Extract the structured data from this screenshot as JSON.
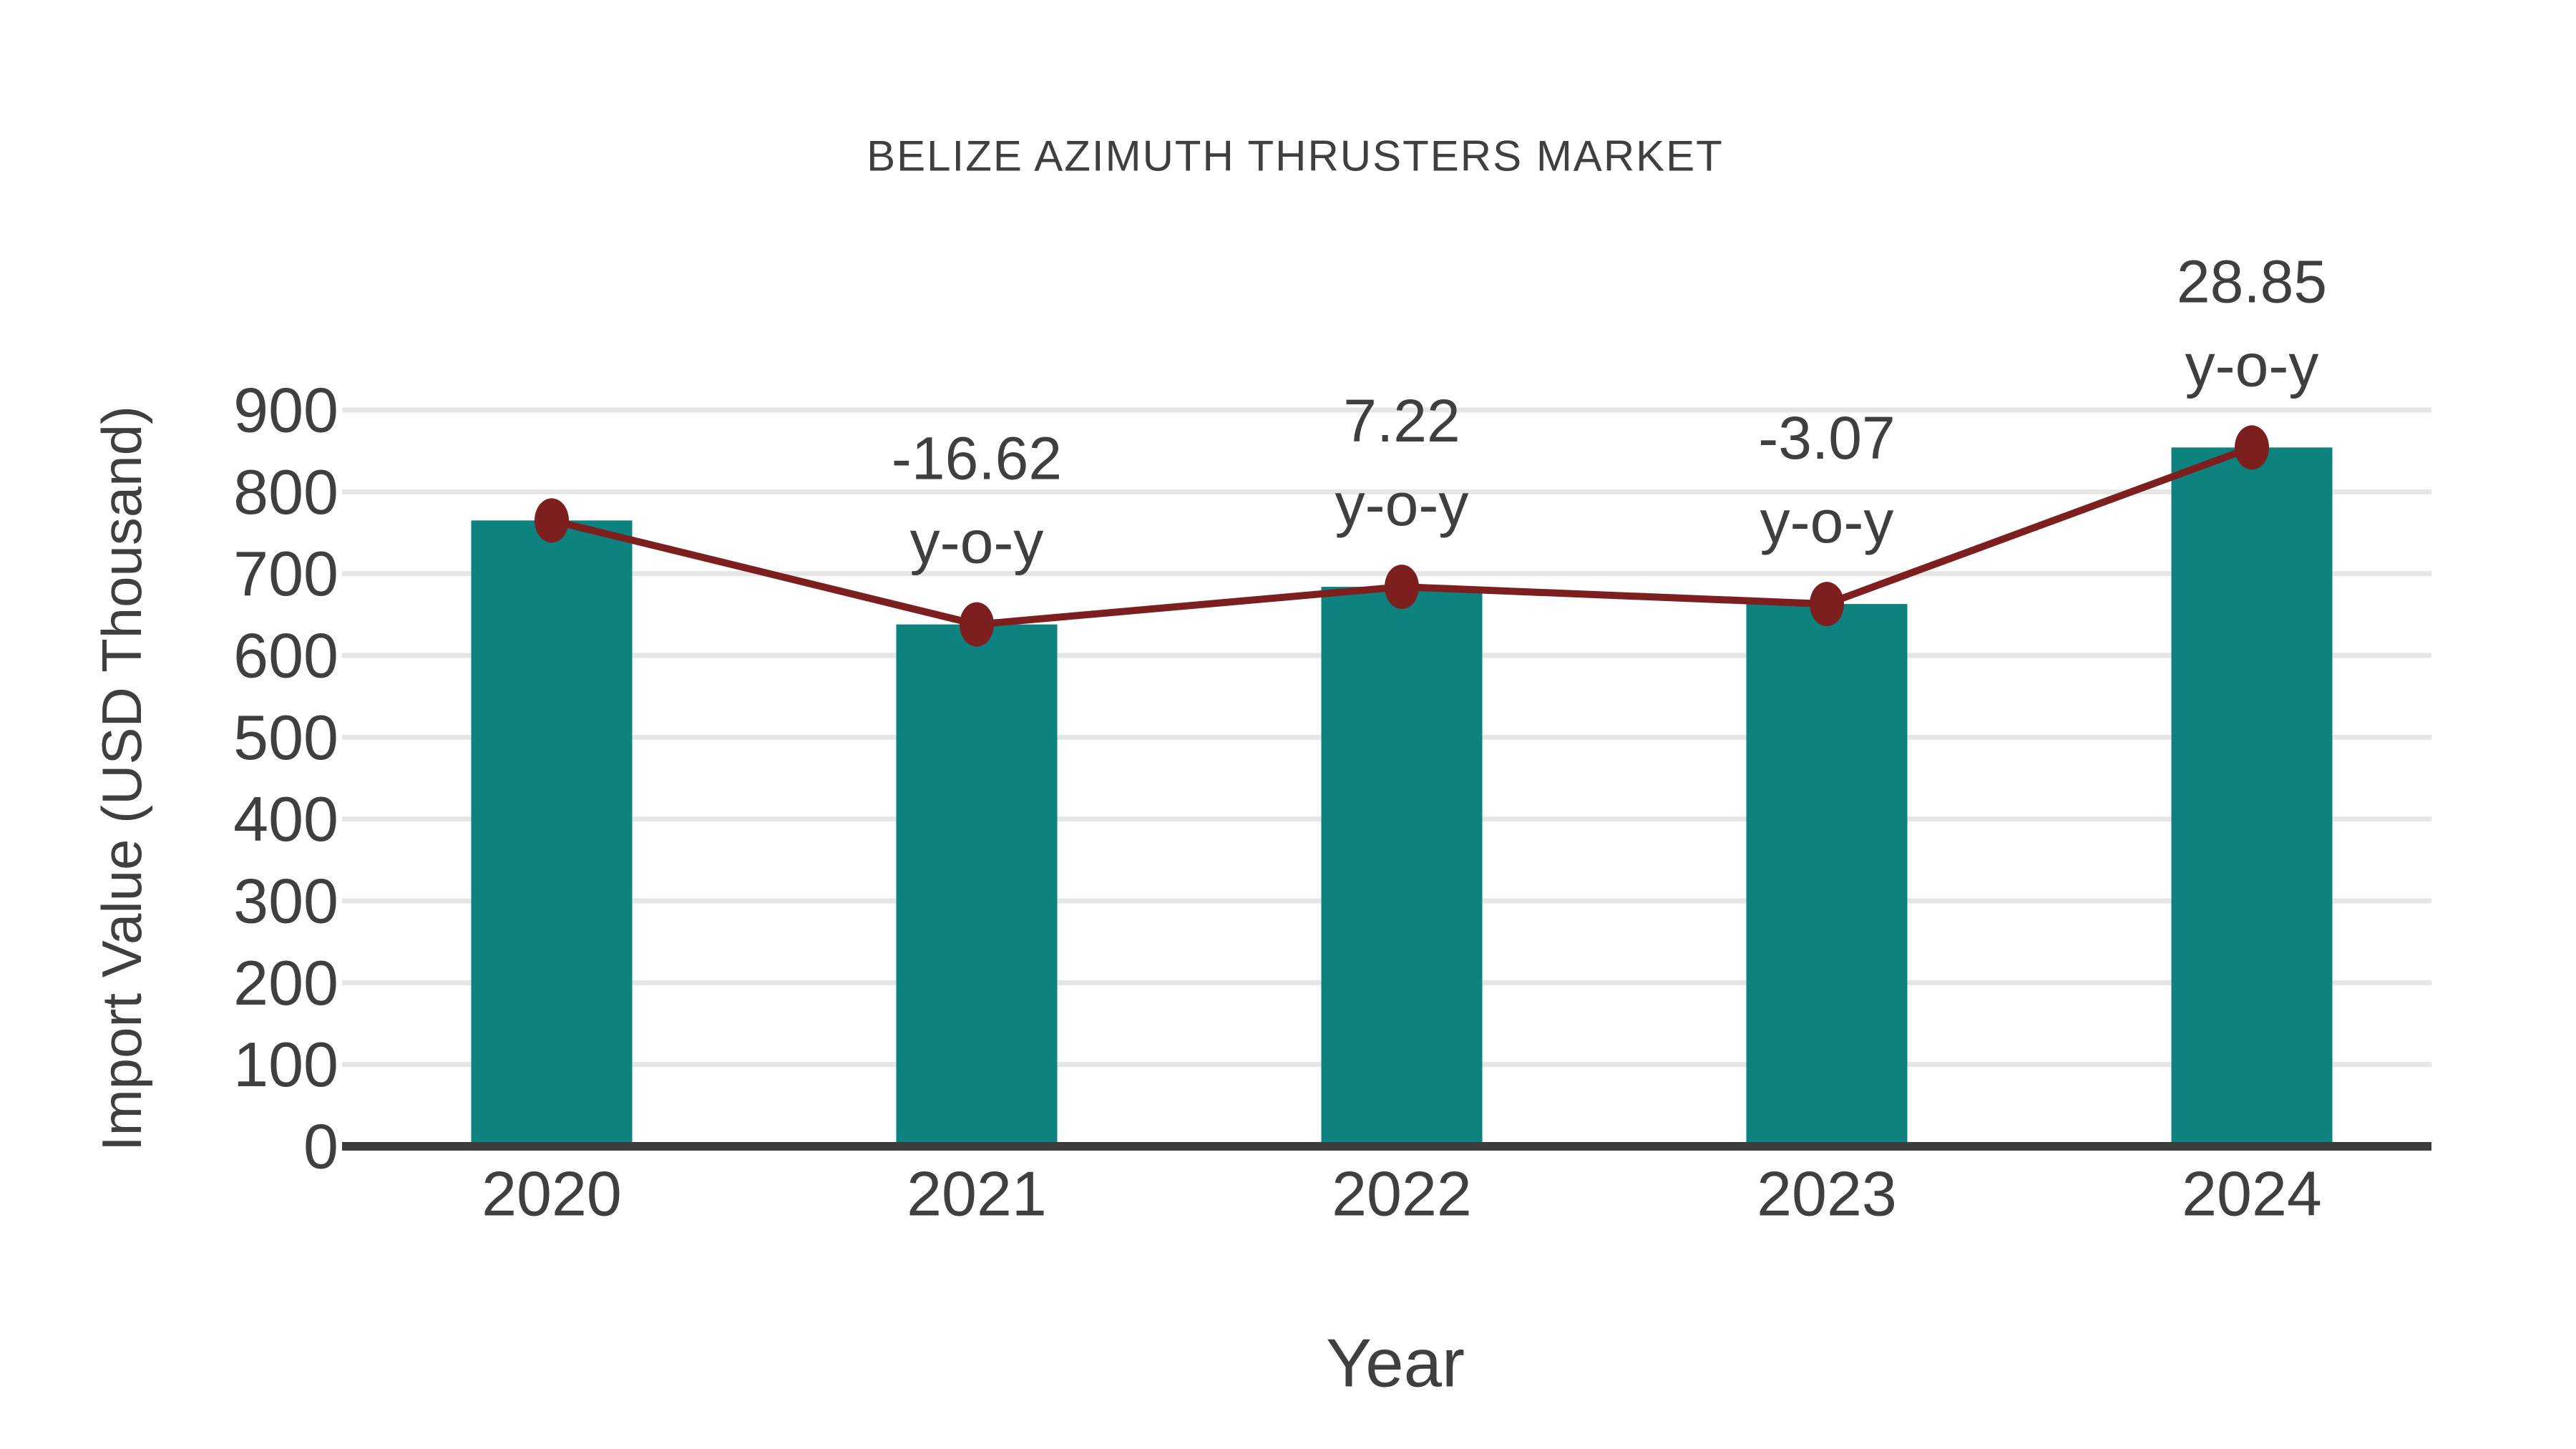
{
  "page": {
    "background": "#ffffff"
  },
  "chart_data": {
    "type": "bar",
    "title": "BELIZE AZIMUTH THRUSTERS MARKET",
    "xlabel": "Year",
    "ylabel": "Import Value (USD Thousand)",
    "categories": [
      "2020",
      "2021",
      "2022",
      "2023",
      "2024"
    ],
    "series": [
      {
        "name": "Import Value (USD Thousand)",
        "type": "bar",
        "values": [
          765,
          637.9,
          683.9,
          662.9,
          854.2
        ]
      },
      {
        "name": "y-o-y growth (%)",
        "type": "line",
        "values": [
          null,
          -16.62,
          7.22,
          -3.07,
          28.85
        ]
      }
    ],
    "annotations": [
      {
        "category": "2021",
        "value_label": "-16.62",
        "unit_label": "y-o-y"
      },
      {
        "category": "2022",
        "value_label": "7.22",
        "unit_label": "y-o-y"
      },
      {
        "category": "2023",
        "value_label": "-3.07",
        "unit_label": "y-o-y"
      },
      {
        "category": "2024",
        "value_label": "28.85",
        "unit_label": "y-o-y"
      }
    ],
    "ylim": [
      0,
      900
    ],
    "ytick_step": 100,
    "yticks": [
      0,
      100,
      200,
      300,
      400,
      500,
      600,
      700,
      800,
      900
    ],
    "grid": true,
    "legend_position": "none",
    "colors": {
      "bar": "#0d827e",
      "line": "#7d1f1f",
      "marker": "#7d1f1f",
      "grid": "#e6e6e6",
      "axis": "#3c3c3c",
      "tick_text": "#3f3f3f",
      "annotation_text": "#454545",
      "title_text": "#4a4a4a"
    }
  }
}
